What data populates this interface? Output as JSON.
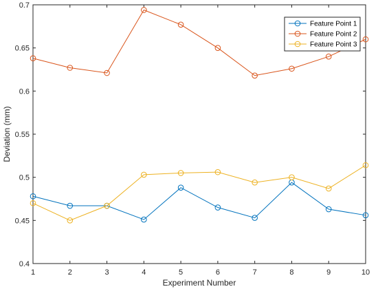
{
  "chart_data": {
    "type": "line",
    "title": "",
    "xlabel": "Experiment Number",
    "ylabel": "Deviation (mm)",
    "x": [
      1,
      2,
      3,
      4,
      5,
      6,
      7,
      8,
      9,
      10
    ],
    "xlim": [
      1,
      10
    ],
    "ylim": [
      0.4,
      0.7
    ],
    "xticks": [
      "1",
      "2",
      "3",
      "4",
      "5",
      "6",
      "7",
      "8",
      "9",
      "10"
    ],
    "yticks": [
      "0.4",
      "0.45",
      "0.5",
      "0.55",
      "0.6",
      "0.65",
      "0.7"
    ],
    "grid": false,
    "legend_position": "top-right",
    "series": [
      {
        "name": "Feature Point 1",
        "color": "#0072BD",
        "marker": "circle",
        "values": [
          0.478,
          0.467,
          0.467,
          0.451,
          0.488,
          0.465,
          0.453,
          0.494,
          0.463,
          0.456
        ]
      },
      {
        "name": "Feature Point 2",
        "color": "#D95319",
        "marker": "circle",
        "values": [
          0.638,
          0.627,
          0.621,
          0.694,
          0.677,
          0.65,
          0.618,
          0.626,
          0.64,
          0.66
        ]
      },
      {
        "name": "Feature Point 3",
        "color": "#EDB120",
        "marker": "circle",
        "values": [
          0.47,
          0.45,
          0.467,
          0.503,
          0.505,
          0.506,
          0.494,
          0.5,
          0.487,
          0.514
        ]
      }
    ]
  }
}
